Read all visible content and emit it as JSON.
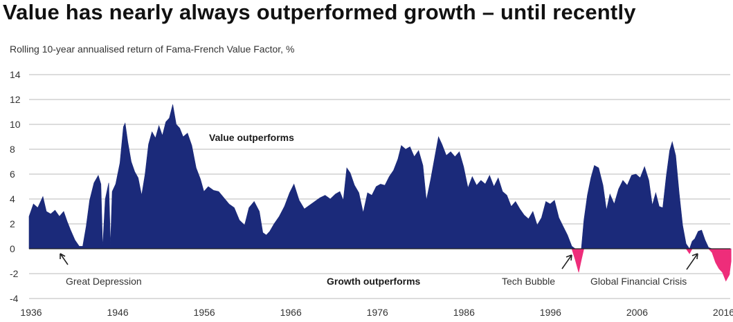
{
  "page": {
    "title": "Value has nearly always outperformed growth – until recently",
    "subtitle": "Rolling 10-year annualised return of Fama-French Value Factor, %"
  },
  "colors": {
    "positive": "#1b2a7a",
    "negative": "#ee2d7a",
    "grid": "#b9b9b9",
    "axis": "#222222",
    "text": "#333333"
  },
  "chart_data": {
    "type": "area",
    "title": "Value has nearly always outperformed growth – until recently",
    "ylabel": "Rolling 10-year annualised return of Fama-French Value Factor, %",
    "xlim": [
      1936,
      2017
    ],
    "ylim": [
      -4,
      14
    ],
    "yticks": [
      14,
      12,
      10,
      8,
      6,
      4,
      2,
      0,
      -2,
      -4
    ],
    "xticks": [
      1936,
      1946,
      1956,
      1966,
      1976,
      1986,
      1996,
      2006,
      2016
    ],
    "grid": true,
    "annotations": [
      {
        "id": "great-depression",
        "text": "Great Depression"
      },
      {
        "id": "tech-bubble",
        "text": "Tech Bubble"
      },
      {
        "id": "gfc",
        "text": "Global Financial Crisis"
      }
    ],
    "region_labels": {
      "upper": "Value outperforms",
      "lower": "Growth outperforms"
    },
    "series": [
      {
        "values": [
          [
            1936.0,
            2.6
          ],
          [
            1936.5,
            3.6
          ],
          [
            1937.0,
            3.3
          ],
          [
            1937.6,
            4.2
          ],
          [
            1938.0,
            3.0
          ],
          [
            1938.5,
            2.8
          ],
          [
            1939.0,
            3.1
          ],
          [
            1939.5,
            2.6
          ],
          [
            1940.0,
            3.0
          ],
          [
            1940.4,
            2.2
          ],
          [
            1940.8,
            1.5
          ],
          [
            1941.3,
            0.7
          ],
          [
            1941.8,
            0.2
          ],
          [
            1942.2,
            0.2
          ],
          [
            1942.6,
            1.8
          ],
          [
            1943.0,
            3.9
          ],
          [
            1943.5,
            5.3
          ],
          [
            1944.0,
            5.9
          ],
          [
            1944.3,
            5.2
          ],
          [
            1944.5,
            0.1
          ],
          [
            1944.8,
            4.0
          ],
          [
            1945.2,
            5.3
          ],
          [
            1945.4,
            0.3
          ],
          [
            1945.6,
            4.6
          ],
          [
            1946.0,
            5.2
          ],
          [
            1946.5,
            6.9
          ],
          [
            1946.9,
            9.8
          ],
          [
            1947.1,
            10.1
          ],
          [
            1947.4,
            8.6
          ],
          [
            1947.8,
            7.0
          ],
          [
            1948.2,
            6.2
          ],
          [
            1948.6,
            5.7
          ],
          [
            1949.0,
            4.3
          ],
          [
            1949.4,
            6.0
          ],
          [
            1949.8,
            8.4
          ],
          [
            1950.2,
            9.4
          ],
          [
            1950.6,
            8.9
          ],
          [
            1951.0,
            9.9
          ],
          [
            1951.4,
            9.1
          ],
          [
            1951.8,
            10.2
          ],
          [
            1952.2,
            10.5
          ],
          [
            1952.6,
            11.6
          ],
          [
            1953.0,
            10.0
          ],
          [
            1953.4,
            9.7
          ],
          [
            1953.8,
            9.0
          ],
          [
            1954.3,
            9.3
          ],
          [
            1954.8,
            8.3
          ],
          [
            1955.3,
            6.5
          ],
          [
            1955.8,
            5.6
          ],
          [
            1956.2,
            4.6
          ],
          [
            1956.7,
            5.0
          ],
          [
            1957.3,
            4.7
          ],
          [
            1957.9,
            4.6
          ],
          [
            1958.5,
            4.1
          ],
          [
            1959.1,
            3.6
          ],
          [
            1959.7,
            3.3
          ],
          [
            1960.3,
            2.3
          ],
          [
            1960.9,
            1.9
          ],
          [
            1961.4,
            3.3
          ],
          [
            1962.0,
            3.8
          ],
          [
            1962.6,
            3.0
          ],
          [
            1963.0,
            1.3
          ],
          [
            1963.4,
            1.1
          ],
          [
            1963.8,
            1.4
          ],
          [
            1964.3,
            2.0
          ],
          [
            1964.9,
            2.6
          ],
          [
            1965.5,
            3.4
          ],
          [
            1966.1,
            4.5
          ],
          [
            1966.6,
            5.2
          ],
          [
            1967.2,
            3.9
          ],
          [
            1967.8,
            3.2
          ],
          [
            1968.4,
            3.5
          ],
          [
            1969.0,
            3.8
          ],
          [
            1969.6,
            4.1
          ],
          [
            1970.2,
            4.3
          ],
          [
            1970.8,
            4.0
          ],
          [
            1971.4,
            4.4
          ],
          [
            1971.9,
            4.6
          ],
          [
            1972.3,
            3.9
          ],
          [
            1972.7,
            6.5
          ],
          [
            1973.1,
            6.1
          ],
          [
            1973.6,
            5.1
          ],
          [
            1974.1,
            4.5
          ],
          [
            1974.6,
            2.9
          ],
          [
            1975.1,
            4.5
          ],
          [
            1975.6,
            4.3
          ],
          [
            1976.1,
            5.0
          ],
          [
            1976.6,
            5.2
          ],
          [
            1977.1,
            5.1
          ],
          [
            1977.6,
            5.8
          ],
          [
            1978.1,
            6.3
          ],
          [
            1978.6,
            7.2
          ],
          [
            1979.0,
            8.3
          ],
          [
            1979.5,
            8.0
          ],
          [
            1980.0,
            8.2
          ],
          [
            1980.5,
            7.4
          ],
          [
            1981.0,
            7.9
          ],
          [
            1981.5,
            6.7
          ],
          [
            1981.9,
            3.9
          ],
          [
            1982.4,
            5.6
          ],
          [
            1982.9,
            7.5
          ],
          [
            1983.3,
            9.0
          ],
          [
            1983.7,
            8.4
          ],
          [
            1984.2,
            7.5
          ],
          [
            1984.7,
            7.8
          ],
          [
            1985.2,
            7.4
          ],
          [
            1985.7,
            7.8
          ],
          [
            1986.2,
            6.6
          ],
          [
            1986.7,
            4.9
          ],
          [
            1987.2,
            5.8
          ],
          [
            1987.7,
            5.1
          ],
          [
            1988.2,
            5.5
          ],
          [
            1988.7,
            5.2
          ],
          [
            1989.2,
            5.9
          ],
          [
            1989.7,
            5.0
          ],
          [
            1990.2,
            5.7
          ],
          [
            1990.7,
            4.6
          ],
          [
            1991.2,
            4.3
          ],
          [
            1991.7,
            3.4
          ],
          [
            1992.2,
            3.8
          ],
          [
            1992.7,
            3.2
          ],
          [
            1993.2,
            2.7
          ],
          [
            1993.7,
            2.4
          ],
          [
            1994.2,
            3.0
          ],
          [
            1994.7,
            1.9
          ],
          [
            1995.2,
            2.5
          ],
          [
            1995.7,
            3.8
          ],
          [
            1996.2,
            3.6
          ],
          [
            1996.7,
            3.9
          ],
          [
            1997.2,
            2.5
          ],
          [
            1997.7,
            1.8
          ],
          [
            1998.2,
            1.1
          ],
          [
            1998.7,
            0.2
          ],
          [
            1999.1,
            -0.9
          ],
          [
            1999.5,
            -1.9
          ],
          [
            1999.8,
            -0.9
          ],
          [
            2000.1,
            2.3
          ],
          [
            2000.5,
            4.3
          ],
          [
            2000.9,
            5.7
          ],
          [
            2001.3,
            6.7
          ],
          [
            2001.8,
            6.5
          ],
          [
            2002.3,
            5.1
          ],
          [
            2002.7,
            3.1
          ],
          [
            2003.1,
            4.4
          ],
          [
            2003.6,
            3.6
          ],
          [
            2004.1,
            4.8
          ],
          [
            2004.6,
            5.5
          ],
          [
            2005.1,
            5.1
          ],
          [
            2005.6,
            5.9
          ],
          [
            2006.1,
            6.0
          ],
          [
            2006.6,
            5.7
          ],
          [
            2007.1,
            6.6
          ],
          [
            2007.6,
            5.5
          ],
          [
            2008.0,
            3.5
          ],
          [
            2008.4,
            4.5
          ],
          [
            2008.8,
            3.4
          ],
          [
            2009.2,
            3.3
          ],
          [
            2009.6,
            5.8
          ],
          [
            2010.0,
            7.9
          ],
          [
            2010.3,
            8.6
          ],
          [
            2010.7,
            7.5
          ],
          [
            2011.1,
            4.5
          ],
          [
            2011.5,
            1.9
          ],
          [
            2011.9,
            0.4
          ],
          [
            2012.3,
            -0.4
          ],
          [
            2012.6,
            0.6
          ],
          [
            2012.9,
            0.8
          ],
          [
            2013.3,
            1.4
          ],
          [
            2013.7,
            1.5
          ],
          [
            2014.1,
            0.7
          ],
          [
            2014.5,
            0.1
          ],
          [
            2014.9,
            -0.3
          ],
          [
            2015.3,
            -1.1
          ],
          [
            2015.7,
            -1.6
          ],
          [
            2016.1,
            -1.9
          ],
          [
            2016.5,
            -2.6
          ],
          [
            2016.9,
            -2.1
          ],
          [
            2017.1,
            -1.0
          ]
        ]
      }
    ]
  }
}
